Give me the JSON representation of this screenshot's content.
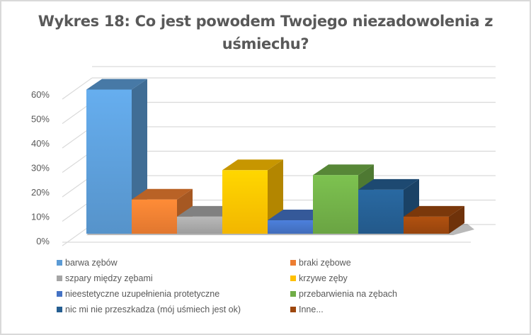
{
  "title": "Wykres 18: Co jest powodem Twojego niezadowolenia z uśmiechu?",
  "title_lines": [
    "Wykres 18: Co jest powodem Twojego niezadowolenia z",
    "uśmiechu?"
  ],
  "chart_data": {
    "type": "bar",
    "style": "3d-clustered-column",
    "title": "Wykres 18: Co jest powodem Twojego niezadowolenia z uśmiechu?",
    "xlabel": "",
    "ylabel": "",
    "ylim": [
      0,
      60
    ],
    "yticks": [
      "0%",
      "10%",
      "20%",
      "30%",
      "40%",
      "50%",
      "60%"
    ],
    "grid": true,
    "legend_position": "bottom",
    "categories": [
      "barwa zębów",
      "braki zębowe",
      "szpary między zębami",
      "krzywe zęby",
      "nieestetyczne uzupełnienia protetyczne",
      "przebarwienia na zębach",
      "nic mi nie przeszkadza (mój uśmiech jest ok)",
      "Inne..."
    ],
    "values": [
      59,
      14,
      7,
      26,
      5.5,
      24,
      18,
      7
    ],
    "unit": "%",
    "series": [
      {
        "name": "barwa zębów",
        "value": 59,
        "color": "#5b9bd5"
      },
      {
        "name": "braki zębowe",
        "value": 14,
        "color": "#ed7d31"
      },
      {
        "name": "szpary między zębami",
        "value": 7,
        "color": "#a5a5a5"
      },
      {
        "name": "krzywe zęby",
        "value": 26,
        "color": "#ffc000"
      },
      {
        "name": "nieestetyczne uzupełnienia protetyczne",
        "value": 5.5,
        "color": "#4472c4"
      },
      {
        "name": "przebarwienia na zębach",
        "value": 24,
        "color": "#70ad47"
      },
      {
        "name": "nic mi nie przeszkadza (mój uśmiech jest ok)",
        "value": 18,
        "color": "#255e91"
      },
      {
        "name": "Inne...",
        "value": 7,
        "color": "#9e480e"
      }
    ]
  },
  "legend": {
    "items": [
      {
        "label": "barwa zębów",
        "color": "#5b9bd5"
      },
      {
        "label": "braki zębowe",
        "color": "#ed7d31"
      },
      {
        "label": "szpary między zębami",
        "color": "#a5a5a5"
      },
      {
        "label": "krzywe zęby",
        "color": "#ffc000"
      },
      {
        "label": "nieestetyczne uzupełnienia protetyczne",
        "color": "#4472c4"
      },
      {
        "label": "przebarwienia na zębach",
        "color": "#70ad47"
      },
      {
        "label": "nic mi nie przeszkadza (mój uśmiech jest ok)",
        "color": "#255e91"
      },
      {
        "label": "Inne...",
        "color": "#9e480e"
      }
    ]
  }
}
